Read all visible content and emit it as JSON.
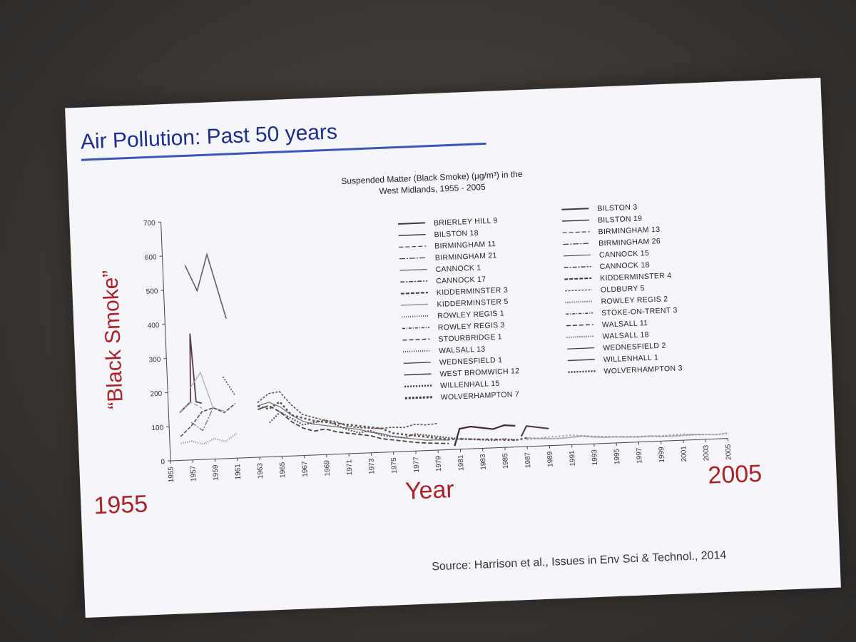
{
  "slide": {
    "title": "Air Pollution: Past 50 years",
    "source": "Source: Harrison et al., Issues in Env Sci & Technol., 2014",
    "year_start": "1955",
    "year_end": "2005",
    "xlabel_big": "Year",
    "ylabel_big": "“Black Smoke”",
    "accent_color": "#a8232a",
    "title_color": "#1f2d8c"
  },
  "chart_data": {
    "type": "line",
    "title_lines": [
      "Suspended Matter (Black Smoke) (µg/m³) in the",
      "West Midlands, 1955 - 2005"
    ],
    "ylim": [
      0,
      700
    ],
    "yticks": [
      0,
      100,
      200,
      300,
      400,
      500,
      600,
      700
    ],
    "xlim": [
      1955,
      2005
    ],
    "xticks": [
      1955,
      1957,
      1959,
      1961,
      1963,
      1965,
      1967,
      1969,
      1971,
      1973,
      1975,
      1977,
      1979,
      1981,
      1983,
      1985,
      1987,
      1989,
      1991,
      1993,
      1995,
      1997,
      1999,
      2001,
      2003,
      2005
    ],
    "legend_left": [
      "BRIERLEY HILL 9",
      "BILSTON 18",
      "BIRMINGHAM 11",
      "BIRMINGHAM 21",
      "CANNOCK 1",
      "CANNOCK 17",
      "KIDDERMINSTER 3",
      "KIDDERMINSTER 5",
      "ROWLEY REGIS 1",
      "ROWLEY REGIS 3",
      "STOURBRIDGE 1",
      "WALSALL 13",
      "WEDNESFIELD 1",
      "WEST BROMWICH 12",
      "WILLENHALL 15",
      "WOLVERHAMPTON 7"
    ],
    "legend_right": [
      "BILSTON 3",
      "BILSTON 19",
      "BIRMINGHAM 13",
      "BIRMINGHAM 26",
      "CANNOCK 15",
      "CANNOCK 18",
      "KIDDERMINSTER 4",
      "OLDBURY 5",
      "ROWLEY REGIS 2",
      "STOKE-ON-TRENT 3",
      "WALSALL 11",
      "WALSALL 18",
      "WEDNESFIELD 2",
      "WILLENHALL 1",
      "WOLVERHAMPTON 3"
    ],
    "series": [
      {
        "x": [
          1957,
          1958,
          1959,
          1960.5
        ],
        "y": [
          570,
          495,
          600,
          410
        ]
      },
      {
        "x": [
          1956,
          1957,
          1957.2,
          1957.5,
          1958
        ],
        "y": [
          140,
          170,
          370,
          170,
          165
        ]
      },
      {
        "x": [
          1956,
          1957,
          1958
        ],
        "y": [
          140,
          170,
          150
        ]
      },
      {
        "x": [
          1957,
          1958,
          1959
        ],
        "y": [
          110,
          85,
          150
        ]
      },
      {
        "x": [
          1957,
          1958,
          1959,
          1960
        ],
        "y": [
          210,
          255,
          150,
          140
        ]
      },
      {
        "x": [
          1960,
          1961
        ],
        "y": [
          240,
          185
        ]
      },
      {
        "x": [
          1956,
          1957,
          1958,
          1959,
          1960,
          1961
        ],
        "y": [
          70,
          100,
          140,
          150,
          135,
          160
        ]
      },
      {
        "x": [
          1956,
          1957,
          1958,
          1959,
          1960,
          1961
        ],
        "y": [
          50,
          55,
          45,
          60,
          50,
          72
        ]
      },
      {
        "x": [
          1963,
          1964,
          1965,
          1966,
          1967,
          1968,
          1969,
          1970,
          1971,
          1972,
          1973,
          1974,
          1975,
          1976,
          1977,
          1978,
          1979,
          1980
        ],
        "y": [
          150,
          160,
          145,
          120,
          100,
          90,
          85,
          80,
          75,
          70,
          60,
          55,
          45,
          40,
          35,
          30,
          30,
          28
        ]
      },
      {
        "x": [
          1963,
          1964,
          1965,
          1966,
          1967,
          1968,
          1969,
          1970,
          1971,
          1972,
          1973,
          1974,
          1975,
          1976,
          1977,
          1978,
          1979
        ],
        "y": [
          160,
          185,
          190,
          150,
          120,
          110,
          100,
          95,
          80,
          75,
          72,
          70,
          72,
          70,
          78,
          75,
          78
        ]
      },
      {
        "x": [
          1963,
          1964,
          1965,
          1966,
          1967,
          1968,
          1969,
          1970,
          1971,
          1972,
          1973,
          1974,
          1975,
          1976,
          1977,
          1978,
          1979,
          1980
        ],
        "y": [
          140,
          150,
          130,
          100,
          80,
          70,
          75,
          65,
          60,
          55,
          50,
          40,
          35,
          30,
          25,
          22,
          20,
          18
        ]
      },
      {
        "x": [
          1964,
          1965,
          1966,
          1967,
          1968,
          1969,
          1970,
          1971,
          1972,
          1973,
          1974,
          1975,
          1976,
          1977,
          1978,
          1979,
          1980,
          1981,
          1982,
          1983,
          1984,
          1985,
          1986
        ],
        "y": [
          100,
          130,
          110,
          90,
          95,
          100,
          85,
          70,
          60,
          65,
          50,
          45,
          40,
          50,
          45,
          40,
          35,
          30,
          28,
          25,
          22,
          25,
          20
        ]
      },
      {
        "x": [
          1980.5,
          1981,
          1982,
          1983,
          1984,
          1985,
          1986
        ],
        "y": [
          10,
          60,
          65,
          60,
          55,
          65,
          62
        ]
      },
      {
        "x": [
          1986.5,
          1987,
          1988,
          1989
        ],
        "y": [
          30,
          60,
          55,
          50
        ]
      },
      {
        "x": [
          1963,
          1964,
          1965,
          1966,
          1967,
          1968,
          1969,
          1970,
          1971,
          1972,
          1973,
          1974,
          1975,
          1976,
          1977,
          1978,
          1979,
          1980,
          1981,
          1982,
          1983,
          1984,
          1985,
          1986,
          1987
        ],
        "y": [
          150,
          140,
          160,
          120,
          110,
          100,
          95,
          90,
          85,
          80,
          75,
          70,
          55,
          50,
          45,
          40,
          35,
          30,
          30,
          28,
          26,
          25,
          22,
          20,
          25
        ]
      },
      {
        "x": [
          1987,
          1988,
          1989,
          1990,
          1991,
          1992,
          1993,
          1994,
          1995,
          1996,
          1997,
          1998,
          1999,
          2000,
          2001,
          2002,
          2003,
          2004,
          2005
        ],
        "y": [
          25,
          22,
          20,
          20,
          22,
          24,
          20,
          18,
          18,
          16,
          15,
          16,
          14,
          13,
          14,
          15,
          14,
          13,
          15
        ]
      },
      {
        "x": [
          1987,
          1989,
          1991,
          1993,
          1995,
          1997,
          1999,
          2001,
          2003
        ],
        "y": [
          20,
          25,
          28,
          22,
          18,
          16,
          15,
          18,
          14
        ]
      }
    ]
  }
}
